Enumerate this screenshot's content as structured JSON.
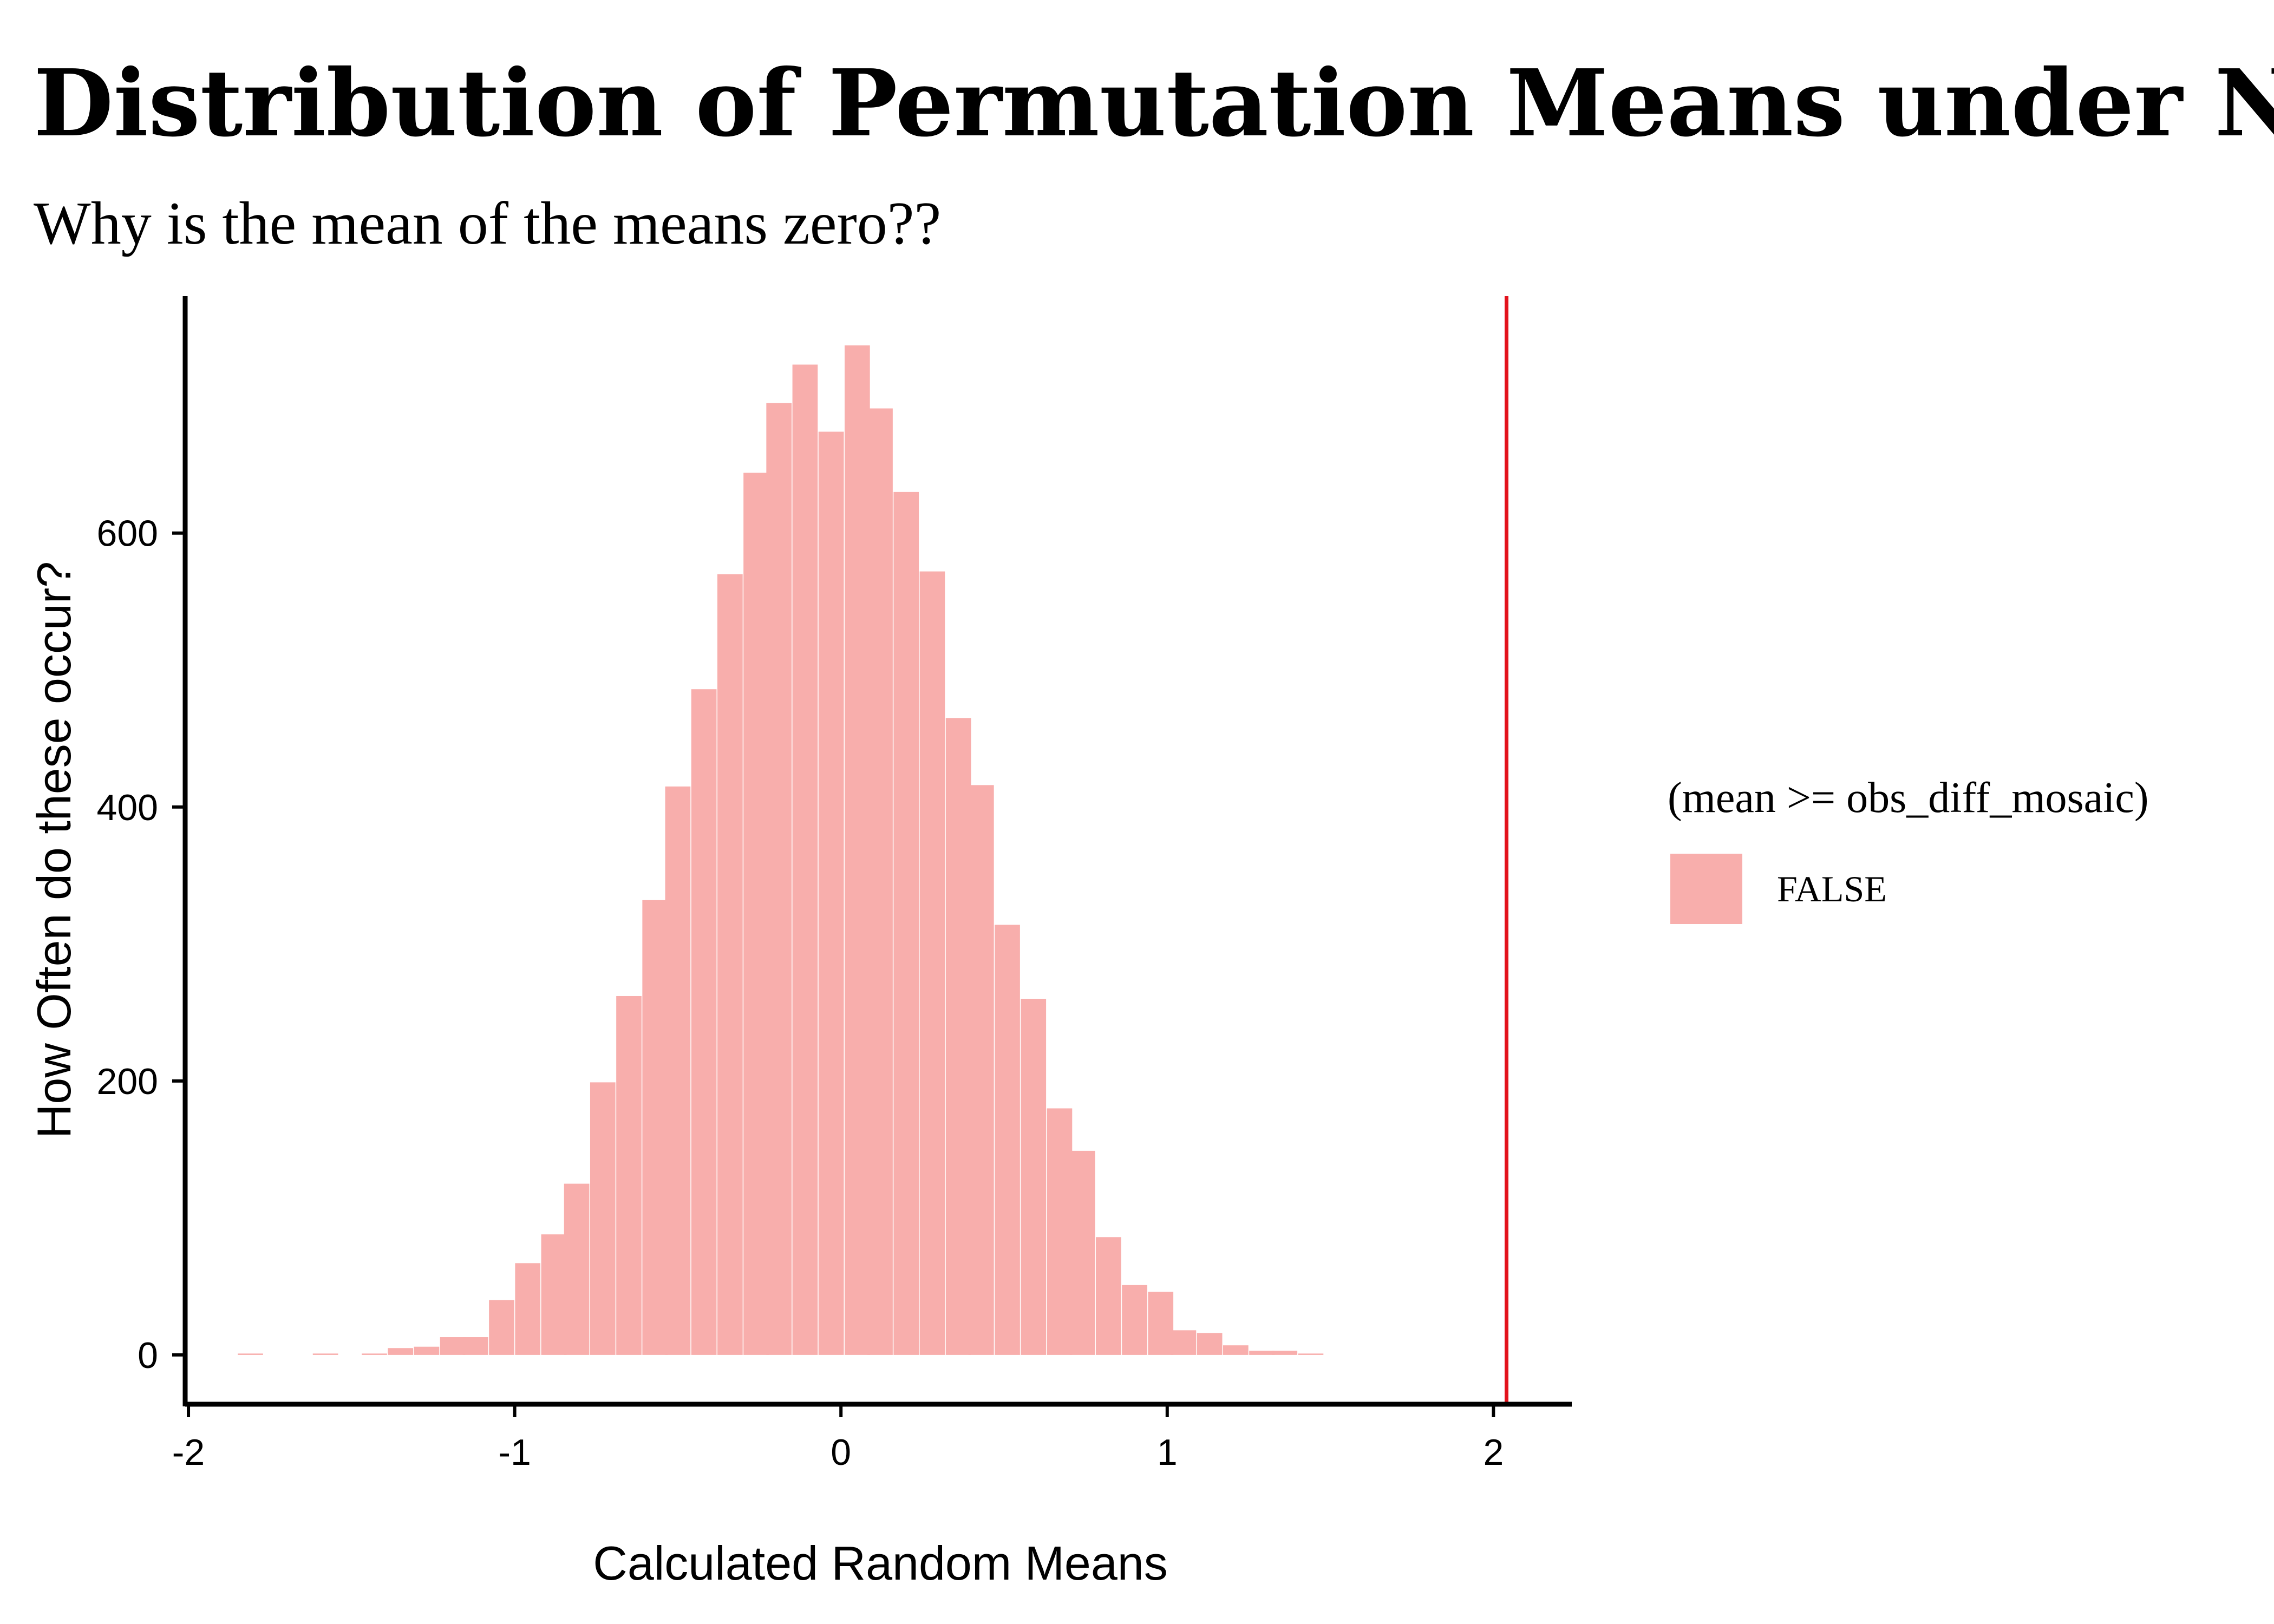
{
  "chart_data": {
    "type": "bar",
    "title": "Distribution of Permutation Means under Null Hy",
    "subtitle": "Why is the mean of the means zero??",
    "xlabel": "Calculated Random Means",
    "ylabel": "How Often do these occur?",
    "xlim": [
      -2.01,
      2.24
    ],
    "ylim": [
      -36,
      773
    ],
    "x_ticks": [
      -2,
      -1,
      0,
      1,
      2
    ],
    "x_tick_labels": [
      "-2",
      "-1",
      "0",
      "1",
      "2"
    ],
    "y_ticks": [
      0,
      200,
      400,
      600
    ],
    "y_tick_labels": [
      "0",
      "200",
      "400",
      "600"
    ],
    "grid": false,
    "bin_width": 0.0775,
    "bins": [
      {
        "x": -1.81,
        "count": 1
      },
      {
        "x": -1.74,
        "count": 0
      },
      {
        "x": -1.66,
        "count": 0
      },
      {
        "x": -1.58,
        "count": 1
      },
      {
        "x": -1.5,
        "count": 0
      },
      {
        "x": -1.43,
        "count": 1
      },
      {
        "x": -1.35,
        "count": 5
      },
      {
        "x": -1.27,
        "count": 6
      },
      {
        "x": -1.19,
        "count": 13
      },
      {
        "x": -1.12,
        "count": 13
      },
      {
        "x": -1.04,
        "count": 40
      },
      {
        "x": -0.96,
        "count": 67
      },
      {
        "x": -0.88,
        "count": 88
      },
      {
        "x": -0.81,
        "count": 125
      },
      {
        "x": -0.73,
        "count": 199
      },
      {
        "x": -0.65,
        "count": 262
      },
      {
        "x": -0.57,
        "count": 332
      },
      {
        "x": -0.5,
        "count": 415
      },
      {
        "x": -0.42,
        "count": 486
      },
      {
        "x": -0.34,
        "count": 570
      },
      {
        "x": -0.26,
        "count": 644
      },
      {
        "x": -0.19,
        "count": 695
      },
      {
        "x": -0.11,
        "count": 723
      },
      {
        "x": -0.03,
        "count": 674
      },
      {
        "x": 0.05,
        "count": 737
      },
      {
        "x": 0.12,
        "count": 691
      },
      {
        "x": 0.2,
        "count": 630
      },
      {
        "x": 0.28,
        "count": 572
      },
      {
        "x": 0.36,
        "count": 465
      },
      {
        "x": 0.43,
        "count": 416
      },
      {
        "x": 0.51,
        "count": 314
      },
      {
        "x": 0.59,
        "count": 260
      },
      {
        "x": 0.67,
        "count": 180
      },
      {
        "x": 0.74,
        "count": 149
      },
      {
        "x": 0.82,
        "count": 86
      },
      {
        "x": 0.9,
        "count": 51
      },
      {
        "x": 0.98,
        "count": 46
      },
      {
        "x": 1.05,
        "count": 18
      },
      {
        "x": 1.13,
        "count": 16
      },
      {
        "x": 1.21,
        "count": 7
      },
      {
        "x": 1.29,
        "count": 3
      },
      {
        "x": 1.36,
        "count": 3
      },
      {
        "x": 1.44,
        "count": 1
      }
    ],
    "vline": {
      "x": 2.04,
      "color": "#e3121c"
    },
    "fill_color": "#f8aeac",
    "legend": {
      "title": "(mean >= obs_diff_mosaic)",
      "entries": [
        {
          "label": "FALSE",
          "color": "#f8aeac"
        }
      ],
      "position": "right"
    }
  }
}
